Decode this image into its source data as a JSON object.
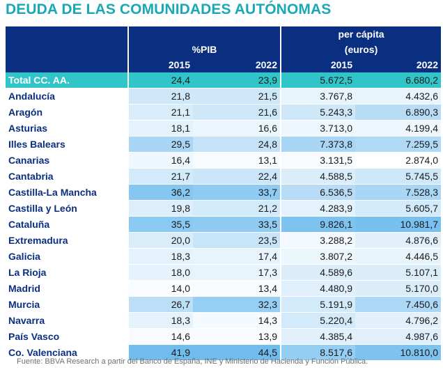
{
  "title": "DEUDA DE LAS COMUNIDADES AUTÓNOMAS",
  "header": {
    "group1": "%PIB",
    "group2_line1": "per cápita",
    "group2_line2": "(euros)",
    "years": [
      "2015",
      "2022",
      "2015",
      "2022"
    ]
  },
  "rows": [
    {
      "name": "Total CC. AA.",
      "pib2015": "24,4",
      "pib2022": "23,9",
      "pc2015": "5.672,5",
      "pc2022": "6.680,2",
      "shade": [
        "#30c5c8",
        "#30c5c8",
        "#30c5c8",
        "#30c5c8"
      ]
    },
    {
      "name": "Andalucía",
      "pib2015": "21,8",
      "pib2022": "21,5",
      "pc2015": "3.767,8",
      "pc2022": "4.432,6",
      "shade": [
        "#cfe8f9",
        "#cfe8f9",
        "#e8f4fc",
        "#e8f4fc"
      ]
    },
    {
      "name": "Aragón",
      "pib2015": "21,1",
      "pib2022": "21,6",
      "pc2015": "5.243,3",
      "pc2022": "6.890,3",
      "shade": [
        "#d8ecfa",
        "#cfe8f9",
        "#cfe8f9",
        "#b8dcf6"
      ]
    },
    {
      "name": "Asturias",
      "pib2015": "18,1",
      "pib2022": "16,6",
      "pc2015": "3.713,0",
      "pc2022": "4.199,4",
      "shade": [
        "#e4f2fb",
        "#ecf6fd",
        "#eef7fd",
        "#eef7fd"
      ]
    },
    {
      "name": "Illes Balears",
      "pib2015": "29,5",
      "pib2022": "24,8",
      "pc2015": "7.373,8",
      "pc2022": "7.259,5",
      "shade": [
        "#a9d6f5",
        "#c4e2f8",
        "#a9d6f5",
        "#b0d9f5"
      ]
    },
    {
      "name": "Canarias",
      "pib2015": "16,4",
      "pib2022": "13,1",
      "pc2015": "3.131,5",
      "pc2022": "2.874,0",
      "shade": [
        "#eef7fd",
        "#f7fbfe",
        "#f7fbfe",
        "#ffffff"
      ]
    },
    {
      "name": "Cantabria",
      "pib2015": "21,7",
      "pib2022": "22,4",
      "pc2015": "4.588,5",
      "pc2022": "5.745,5",
      "shade": [
        "#d3eafa",
        "#cbe6f9",
        "#dcedfa",
        "#cfe8f9"
      ]
    },
    {
      "name": "Castilla-La Mancha",
      "pib2015": "36,2",
      "pib2022": "33,7",
      "pc2015": "6.536,5",
      "pc2022": "7.528,3",
      "shade": [
        "#86c7f1",
        "#8fcbf2",
        "#b8dcf6",
        "#a9d6f5"
      ]
    },
    {
      "name": "Castilla y León",
      "pib2015": "19,8",
      "pib2022": "21,2",
      "pc2015": "4.283,9",
      "pc2022": "5.605,7",
      "shade": [
        "#dceefb",
        "#d3eafa",
        "#e4f2fb",
        "#d3eafa"
      ]
    },
    {
      "name": "Cataluña",
      "pib2015": "35,5",
      "pib2022": "33,5",
      "pc2015": "9.826,1",
      "pc2022": "10.981,7",
      "shade": [
        "#8ac9f1",
        "#8fcbf2",
        "#7ec3f0",
        "#78c0ef"
      ]
    },
    {
      "name": "Extremadura",
      "pib2015": "20,0",
      "pib2022": "23,5",
      "pc2015": "3.288,2",
      "pc2022": "4.876,6",
      "shade": [
        "#d8ecfa",
        "#c8e4f8",
        "#f3f9fe",
        "#e2f0fb"
      ]
    },
    {
      "name": "Galicia",
      "pib2015": "18,3",
      "pib2022": "17,4",
      "pc2015": "3.807,2",
      "pc2022": "4.446,5",
      "shade": [
        "#e4f2fb",
        "#e8f4fc",
        "#ecf6fd",
        "#e8f4fc"
      ]
    },
    {
      "name": "La Rioja",
      "pib2015": "18,0",
      "pib2022": "17,3",
      "pc2015": "4.589,6",
      "pc2022": "5.107,1",
      "shade": [
        "#e6f3fc",
        "#e8f4fc",
        "#dcedfa",
        "#dcedfa"
      ]
    },
    {
      "name": "Madrid",
      "pib2015": "14,0",
      "pib2022": "13,4",
      "pc2015": "4.480,9",
      "pc2022": "5.170,0",
      "shade": [
        "#fafdff",
        "#f7fbfe",
        "#dfeffb",
        "#dcedfa"
      ]
    },
    {
      "name": "Murcia",
      "pib2015": "26,7",
      "pib2022": "32,3",
      "pc2015": "5.191,9",
      "pc2022": "7.450,6",
      "shade": [
        "#bcdff7",
        "#96cff3",
        "#d3eafa",
        "#acd7f5"
      ]
    },
    {
      "name": "Navarra",
      "pib2015": "18,3",
      "pib2022": "14,3",
      "pc2015": "5.220,4",
      "pc2022": "4.796,2",
      "shade": [
        "#e4f2fb",
        "#f5fafe",
        "#d3eafa",
        "#e2f0fb"
      ]
    },
    {
      "name": "País Vasco",
      "pib2015": "14,6",
      "pib2022": "13,9",
      "pc2015": "4.385,4",
      "pc2022": "4.987,6",
      "shade": [
        "#f7fbfe",
        "#f9fcfe",
        "#e2f0fb",
        "#dfeffb"
      ]
    },
    {
      "name": "Co. Valenciana",
      "pib2015": "41,9",
      "pib2022": "44,5",
      "pc2015": "8.517,6",
      "pc2022": "10.810,0",
      "shade": [
        "#6fbced",
        "#6fbced",
        "#95cef3",
        "#7ec3f0"
      ]
    }
  ],
  "source": "Fuente: BBVA Research a partir del Banco de España, INE y Ministerio de Hacienda y Función Pública."
}
